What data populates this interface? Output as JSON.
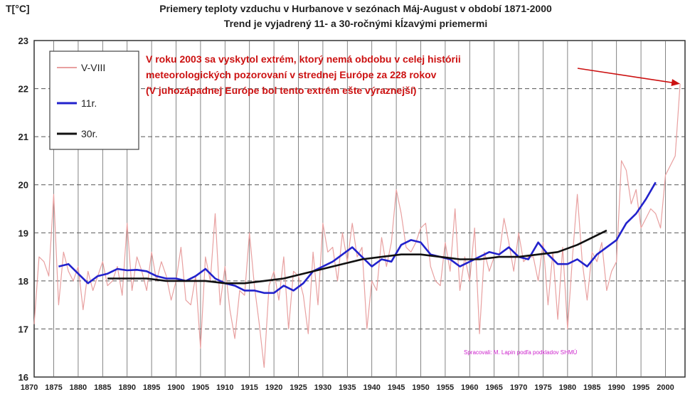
{
  "chart_data": {
    "type": "line",
    "title": "Priemery teploty vzduchu v Hurbanove v sezónach Máj-August v období 1871-2000",
    "subtitle": "Trend je vyjadrený 11- a 30-ročnými kĺzavými priemermi",
    "ylabel": "T[°C]",
    "xlabel": "",
    "ylim": [
      16,
      23
    ],
    "xlim": [
      1871,
      2004
    ],
    "y_ticks": [
      "16",
      "17",
      "18",
      "19",
      "20",
      "21",
      "22",
      "23"
    ],
    "x_ticks": [
      "1870",
      "1875",
      "1880",
      "1885",
      "1890",
      "1895",
      "1900",
      "1905",
      "1910",
      "1915",
      "1920",
      "1925",
      "1930",
      "1935",
      "1940",
      "1945",
      "1950",
      "1955",
      "1960",
      "1965",
      "1970",
      "1975",
      "1980",
      "1985",
      "1990",
      "1995",
      "2000"
    ],
    "grid": "horizontal dashed, vertical every 5 years",
    "legend_position": "top-left",
    "annotation": [
      "V roku 2003 sa vyskytol extrém, ktorý nemá obdobu v celej histórii",
      "meteorologických pozorovaní v strednej Európe za 228 rokov",
      "(V juhozápadnej Európe bol tento extrém ešte výraznejší)"
    ],
    "annotation_target": {
      "x": 2003,
      "y": 22.1
    },
    "credit": "Spracovali: M. Lapin podľa podkladov SHMÚ",
    "series": [
      {
        "name": "V-VIII",
        "color": "#e8a0a0",
        "x": [
          1871,
          1872,
          1873,
          1874,
          1875,
          1876,
          1877,
          1878,
          1879,
          1880,
          1881,
          1882,
          1883,
          1884,
          1885,
          1886,
          1887,
          1888,
          1889,
          1890,
          1891,
          1892,
          1893,
          1894,
          1895,
          1896,
          1897,
          1898,
          1899,
          1900,
          1901,
          1902,
          1903,
          1904,
          1905,
          1906,
          1907,
          1908,
          1909,
          1910,
          1911,
          1912,
          1913,
          1914,
          1915,
          1916,
          1917,
          1918,
          1919,
          1920,
          1921,
          1922,
          1923,
          1924,
          1925,
          1926,
          1927,
          1928,
          1929,
          1930,
          1931,
          1932,
          1933,
          1934,
          1935,
          1936,
          1937,
          1938,
          1939,
          1940,
          1941,
          1942,
          1943,
          1944,
          1945,
          1946,
          1947,
          1948,
          1949,
          1950,
          1951,
          1952,
          1953,
          1954,
          1955,
          1956,
          1957,
          1958,
          1959,
          1960,
          1961,
          1962,
          1963,
          1964,
          1965,
          1966,
          1967,
          1968,
          1969,
          1970,
          1971,
          1972,
          1973,
          1974,
          1975,
          1976,
          1977,
          1978,
          1979,
          1980,
          1981,
          1982,
          1983,
          1984,
          1985,
          1986,
          1987,
          1988,
          1989,
          1990,
          1991,
          1992,
          1993,
          1994,
          1995,
          1996,
          1997,
          1998,
          1999,
          2000,
          2001,
          2002,
          2003
        ],
        "values": [
          17.1,
          18.5,
          18.4,
          18.1,
          19.8,
          17.5,
          18.6,
          18.2,
          18.0,
          18.3,
          17.4,
          18.2,
          17.8,
          18.1,
          18.4,
          17.9,
          18.0,
          18.3,
          17.7,
          19.2,
          17.8,
          18.5,
          18.2,
          17.8,
          18.6,
          18.0,
          18.4,
          18.1,
          17.6,
          18.0,
          18.7,
          17.6,
          17.5,
          18.1,
          16.6,
          18.5,
          18.0,
          19.4,
          17.5,
          18.3,
          17.4,
          16.8,
          17.8,
          17.7,
          19.0,
          17.9,
          17.1,
          16.2,
          17.9,
          18.2,
          17.6,
          18.5,
          17.0,
          18.2,
          18.1,
          17.7,
          16.9,
          18.6,
          17.5,
          19.2,
          18.6,
          18.7,
          18.0,
          19.0,
          18.4,
          19.2,
          18.5,
          18.7,
          17.0,
          18.0,
          17.8,
          18.9,
          18.3,
          18.8,
          19.9,
          19.4,
          18.7,
          18.6,
          18.8,
          19.1,
          19.2,
          18.3,
          18.0,
          17.9,
          18.8,
          18.2,
          19.5,
          17.8,
          18.5,
          18.0,
          19.1,
          16.9,
          18.6,
          18.2,
          18.5,
          18.5,
          19.3,
          18.8,
          18.2,
          19.0,
          18.4,
          18.5,
          18.5,
          18.0,
          18.8,
          17.5,
          18.6,
          17.2,
          18.7,
          17.0,
          18.5,
          19.8,
          18.4,
          17.6,
          18.6,
          18.4,
          18.8,
          17.8,
          18.2,
          18.4,
          20.5,
          20.3,
          19.6,
          19.9,
          19.1,
          19.3,
          19.5,
          19.4,
          19.1,
          20.2,
          20.4,
          20.6,
          22.1
        ]
      },
      {
        "name": "11r.",
        "color": "#2222cc",
        "x": [
          1876,
          1878,
          1880,
          1882,
          1884,
          1886,
          1888,
          1890,
          1892,
          1894,
          1896,
          1898,
          1900,
          1902,
          1904,
          1906,
          1908,
          1910,
          1912,
          1914,
          1916,
          1918,
          1920,
          1922,
          1924,
          1926,
          1928,
          1930,
          1932,
          1934,
          1936,
          1938,
          1940,
          1942,
          1944,
          1946,
          1948,
          1950,
          1952,
          1954,
          1956,
          1958,
          1960,
          1962,
          1964,
          1966,
          1968,
          1970,
          1972,
          1974,
          1976,
          1978,
          1980,
          1982,
          1984,
          1986,
          1988,
          1990,
          1992,
          1994,
          1996,
          1998
        ],
        "values": [
          18.3,
          18.35,
          18.15,
          17.95,
          18.1,
          18.15,
          18.25,
          18.22,
          18.23,
          18.2,
          18.1,
          18.05,
          18.05,
          18.0,
          18.1,
          18.25,
          18.05,
          17.95,
          17.9,
          17.8,
          17.8,
          17.75,
          17.75,
          17.9,
          17.8,
          17.95,
          18.2,
          18.3,
          18.4,
          18.55,
          18.7,
          18.5,
          18.3,
          18.45,
          18.4,
          18.75,
          18.85,
          18.8,
          18.55,
          18.5,
          18.45,
          18.3,
          18.4,
          18.5,
          18.6,
          18.55,
          18.7,
          18.5,
          18.45,
          18.8,
          18.55,
          18.35,
          18.35,
          18.45,
          18.3,
          18.55,
          18.7,
          18.85,
          19.2,
          19.4,
          19.7,
          20.05
        ]
      },
      {
        "name": "30r.",
        "color": "#111111",
        "x": [
          1886,
          1890,
          1894,
          1898,
          1902,
          1906,
          1910,
          1914,
          1918,
          1922,
          1926,
          1930,
          1934,
          1938,
          1942,
          1946,
          1950,
          1954,
          1958,
          1962,
          1966,
          1970,
          1974,
          1978,
          1982,
          1986,
          1988
        ],
        "values": [
          18.05,
          18.05,
          18.05,
          18.0,
          18.0,
          18.0,
          17.95,
          17.95,
          18.0,
          18.05,
          18.15,
          18.25,
          18.35,
          18.45,
          18.5,
          18.55,
          18.55,
          18.5,
          18.45,
          18.45,
          18.5,
          18.5,
          18.55,
          18.6,
          18.75,
          18.95,
          19.05
        ]
      }
    ]
  }
}
